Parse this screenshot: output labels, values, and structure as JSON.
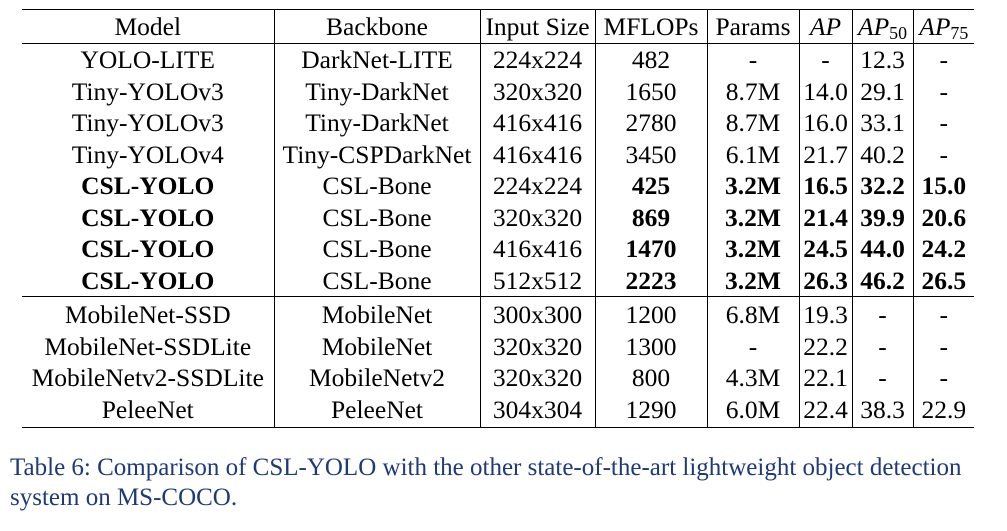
{
  "table": {
    "headers": {
      "model": "Model",
      "backbone": "Backbone",
      "input_size": "Input Size",
      "mflops": "MFLOPs",
      "params": "Params",
      "ap": "AP",
      "ap50_base": "AP",
      "ap50_sub": "50",
      "ap75_base": "AP",
      "ap75_sub": "75"
    },
    "rows": [
      [
        "YOLO-LITE",
        "DarkNet-LITE",
        "224x224",
        "482",
        "-",
        "-",
        "12.3",
        "-"
      ],
      [
        "Tiny-YOLOv3",
        "Tiny-DarkNet",
        "320x320",
        "1650",
        "8.7M",
        "14.0",
        "29.1",
        "-"
      ],
      [
        "Tiny-YOLOv3",
        "Tiny-DarkNet",
        "416x416",
        "2780",
        "8.7M",
        "16.0",
        "33.1",
        "-"
      ],
      [
        "Tiny-YOLOv4",
        "Tiny-CSPDarkNet",
        "416x416",
        "3450",
        "6.1M",
        "21.7",
        "40.2",
        "-"
      ],
      [
        "CSL-YOLO",
        "CSL-Bone",
        "224x224",
        "425",
        "3.2M",
        "16.5",
        "32.2",
        "15.0"
      ],
      [
        "CSL-YOLO",
        "CSL-Bone",
        "320x320",
        "869",
        "3.2M",
        "21.4",
        "39.9",
        "20.6"
      ],
      [
        "CSL-YOLO",
        "CSL-Bone",
        "416x416",
        "1470",
        "3.2M",
        "24.5",
        "44.0",
        "24.2"
      ],
      [
        "CSL-YOLO",
        "CSL-Bone",
        "512x512",
        "2223",
        "3.2M",
        "26.3",
        "46.2",
        "26.5"
      ],
      [
        "MobileNet-SSD",
        "MobileNet",
        "300x300",
        "1200",
        "6.8M",
        "19.3",
        "-",
        "-"
      ],
      [
        "MobileNet-SSDLite",
        "MobileNet",
        "320x320",
        "1300",
        "-",
        "22.2",
        "-",
        "-"
      ],
      [
        "MobileNetv2-SSDLite",
        "MobileNetv2",
        "320x320",
        "800",
        "4.3M",
        "22.1",
        "-",
        "-"
      ],
      [
        "PeleeNet",
        "PeleeNet",
        "304x304",
        "1290",
        "6.0M",
        "22.4",
        "38.3",
        "22.9"
      ]
    ]
  },
  "caption": "Table 6: Comparison of CSL-YOLO with the other state-of-the-art lightweight object detection system on MS-COCO.",
  "colors": {
    "caption": "#1f3a78",
    "text": "#000000"
  }
}
